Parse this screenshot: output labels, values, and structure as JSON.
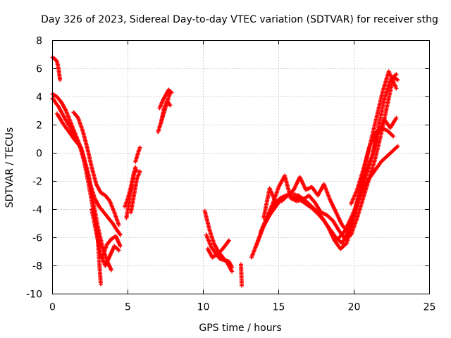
{
  "chart_data": {
    "type": "scatter",
    "title": "Day 326 of 2023, Sidereal Day-to-day VTEC variation (SDTVAR) for receiver sthg",
    "xlabel": "GPS time / hours",
    "ylabel": "SDTVAR / TECUs",
    "xlim": [
      0,
      25
    ],
    "ylim": [
      -10,
      8
    ],
    "xticks": [
      "0",
      "5",
      "10",
      "15",
      "20",
      "25"
    ],
    "yticks": [
      "-10",
      "-8",
      "-6",
      "-4",
      "-2",
      "0",
      "2",
      "4",
      "6",
      "8"
    ],
    "grid": true,
    "marker": "+",
    "color": "#ff0000",
    "series": [
      {
        "name": "s1",
        "x": [
          0.0,
          0.15,
          0.3,
          0.4,
          0.5
        ],
        "y": [
          6.8,
          6.7,
          6.5,
          6.0,
          5.2
        ]
      },
      {
        "name": "s2",
        "x": [
          0.0,
          0.3,
          0.6,
          0.9,
          1.2,
          1.5,
          1.8,
          2.1,
          2.4,
          2.7,
          3.0,
          3.2
        ],
        "y": [
          4.2,
          4.0,
          3.6,
          3.0,
          2.2,
          1.4,
          0.6,
          -0.6,
          -2.2,
          -4.0,
          -6.0,
          -9.3
        ]
      },
      {
        "name": "s3",
        "x": [
          0.0,
          0.4,
          0.8,
          1.2,
          1.6,
          2.0,
          2.4,
          2.7,
          3.0,
          3.3,
          3.6,
          3.9
        ],
        "y": [
          3.9,
          3.3,
          2.5,
          1.8,
          1.0,
          0.0,
          -1.6,
          -3.4,
          -5.2,
          -6.6,
          -7.6,
          -8.3
        ]
      },
      {
        "name": "s4",
        "x": [
          0.3,
          0.7,
          1.1,
          1.5,
          1.9,
          2.2,
          2.5,
          2.8,
          3.1,
          3.4,
          3.7,
          4.0,
          4.3,
          4.5
        ],
        "y": [
          2.8,
          2.1,
          1.5,
          0.9,
          0.4,
          -0.8,
          -2.2,
          -3.2,
          -3.8,
          -4.2,
          -4.6,
          -5.0,
          -5.5,
          -5.8
        ]
      },
      {
        "name": "s5",
        "x": [
          1.4,
          1.7,
          2.0,
          2.3,
          2.6,
          2.9,
          3.2,
          3.5,
          3.8,
          4.1,
          4.4
        ],
        "y": [
          2.9,
          2.5,
          1.6,
          0.4,
          -1.0,
          -2.2,
          -2.8,
          -3.0,
          -3.4,
          -4.2,
          -5.1
        ]
      },
      {
        "name": "s6",
        "x": [
          2.6,
          2.9,
          3.2,
          3.5,
          3.8,
          4.1,
          4.4
        ],
        "y": [
          -4.0,
          -5.6,
          -7.2,
          -8.0,
          -7.3,
          -6.6,
          -6.9
        ]
      },
      {
        "name": "s7",
        "x": [
          3.3,
          3.6,
          3.9,
          4.2,
          4.5
        ],
        "y": [
          -7.4,
          -6.5,
          -6.1,
          -5.9,
          -6.6
        ]
      },
      {
        "name": "s8",
        "x": [
          4.9,
          5.1,
          5.3,
          5.5
        ],
        "y": [
          -4.6,
          -3.4,
          -2.0,
          -1.0
        ]
      },
      {
        "name": "s9",
        "x": [
          4.8,
          5.0,
          5.2,
          5.4,
          5.6
        ],
        "y": [
          -3.8,
          -3.2,
          -2.4,
          -1.4,
          -1.2
        ]
      },
      {
        "name": "s10",
        "x": [
          5.2,
          5.4,
          5.6,
          5.8
        ],
        "y": [
          -4.2,
          -3.0,
          -1.8,
          -1.3
        ]
      },
      {
        "name": "s11",
        "x": [
          5.5,
          5.7,
          5.8
        ],
        "y": [
          -0.6,
          0.1,
          0.4
        ]
      },
      {
        "name": "s12",
        "x": [
          7.0,
          7.2,
          7.4,
          7.6,
          7.8
        ],
        "y": [
          1.5,
          2.2,
          2.9,
          3.6,
          4.3
        ]
      },
      {
        "name": "s13",
        "x": [
          7.1,
          7.3,
          7.5,
          7.7,
          7.9
        ],
        "y": [
          3.2,
          3.7,
          4.1,
          4.5,
          4.3
        ]
      },
      {
        "name": "s14",
        "x": [
          7.2,
          7.4,
          7.6,
          7.8
        ],
        "y": [
          2.2,
          3.2,
          3.7,
          3.4
        ]
      },
      {
        "name": "s15",
        "x": [
          10.1,
          10.4,
          10.7,
          11.0,
          11.3,
          11.6,
          11.9
        ],
        "y": [
          -4.1,
          -5.4,
          -6.4,
          -7.0,
          -7.4,
          -7.8,
          -8.4
        ]
      },
      {
        "name": "s16",
        "x": [
          10.2,
          10.5,
          10.8,
          11.1,
          11.4,
          11.7,
          11.9
        ],
        "y": [
          -5.8,
          -6.6,
          -7.1,
          -7.5,
          -7.6,
          -7.7,
          -8.1
        ]
      },
      {
        "name": "s17",
        "x": [
          10.3,
          10.6,
          10.9,
          11.2,
          11.5,
          11.7
        ],
        "y": [
          -6.8,
          -7.4,
          -7.2,
          -6.9,
          -6.5,
          -6.2
        ]
      },
      {
        "name": "s18",
        "x": [
          12.5,
          12.55
        ],
        "y": [
          -7.9,
          -9.4
        ]
      },
      {
        "name": "s19",
        "x": [
          13.2,
          13.6,
          14.0,
          14.4,
          14.8,
          15.2,
          15.6,
          16.0,
          16.4,
          16.8,
          17.2,
          17.6,
          18.0,
          18.4,
          18.8,
          19.2,
          19.6,
          20.0,
          20.4,
          20.8,
          21.2,
          21.6,
          22.0,
          22.4,
          22.8
        ],
        "y": [
          -7.4,
          -6.3,
          -5.2,
          -4.4,
          -3.8,
          -3.2,
          -3.0,
          -3.1,
          -3.3,
          -3.6,
          -3.9,
          -4.3,
          -4.8,
          -5.4,
          -6.0,
          -6.4,
          -5.6,
          -4.4,
          -3.0,
          -1.6,
          -0.2,
          1.8,
          3.8,
          5.2,
          5.6
        ]
      },
      {
        "name": "s20",
        "x": [
          13.5,
          13.9,
          14.3,
          14.7,
          15.1,
          15.5,
          15.9,
          16.3,
          16.7,
          17.1,
          17.5,
          17.9,
          18.3,
          18.7,
          19.1,
          19.5,
          19.9,
          20.3,
          20.7,
          21.1,
          21.5,
          21.9,
          22.3,
          22.8
        ],
        "y": [
          -6.6,
          -5.4,
          -4.4,
          -3.6,
          -3.2,
          -3.0,
          -2.9,
          -3.0,
          -3.3,
          -3.7,
          -4.1,
          -4.6,
          -5.3,
          -6.2,
          -6.8,
          -6.4,
          -5.0,
          -3.0,
          -1.0,
          0.8,
          2.6,
          4.4,
          5.8,
          4.6
        ]
      },
      {
        "name": "s21",
        "x": [
          13.8,
          14.2,
          14.6,
          15.0,
          15.4,
          15.8,
          16.2,
          16.6,
          17.0,
          17.4,
          17.8,
          18.2,
          18.6,
          19.0,
          19.4,
          19.8,
          20.2,
          20.6,
          21.0,
          21.4,
          21.8,
          22.2,
          22.6,
          22.9
        ],
        "y": [
          -5.6,
          -4.6,
          -3.6,
          -2.4,
          -1.6,
          -3.2,
          -3.4,
          -3.3,
          -3.0,
          -3.5,
          -4.2,
          -4.4,
          -4.8,
          -5.5,
          -6.1,
          -5.8,
          -4.6,
          -3.2,
          -1.8,
          -0.4,
          1.4,
          3.4,
          5.4,
          5.2
        ]
      },
      {
        "name": "s22",
        "x": [
          14.0,
          14.4,
          14.8,
          15.2,
          15.6,
          16.0,
          16.4,
          16.8,
          17.2,
          17.6,
          18.0,
          18.4,
          18.8,
          19.2,
          19.6,
          20.0,
          20.4,
          20.8,
          21.2,
          21.6,
          22.0,
          22.4,
          22.8
        ],
        "y": [
          -4.6,
          -2.5,
          -3.5,
          -3.4,
          -3.0,
          -2.6,
          -1.7,
          -2.6,
          -2.4,
          -3.0,
          -2.2,
          -3.3,
          -4.2,
          -5.1,
          -5.6,
          -4.2,
          -2.6,
          -1.2,
          -0.2,
          1.4,
          2.4,
          1.8,
          2.5
        ]
      },
      {
        "name": "s23",
        "x": [
          19.0,
          19.4,
          19.8,
          20.2,
          20.6,
          21.0,
          21.4,
          21.8,
          22.2,
          22.6,
          22.9
        ],
        "y": [
          -6.0,
          -5.5,
          -4.6,
          -3.6,
          -2.6,
          -1.8,
          -1.2,
          -0.6,
          -0.2,
          0.2,
          0.5
        ]
      },
      {
        "name": "s24",
        "x": [
          19.8,
          20.2,
          20.6,
          21.0,
          21.4,
          21.8,
          22.2,
          22.6
        ],
        "y": [
          -3.6,
          -2.6,
          -1.2,
          0.4,
          1.4,
          1.8,
          1.6,
          1.2
        ]
      }
    ]
  }
}
